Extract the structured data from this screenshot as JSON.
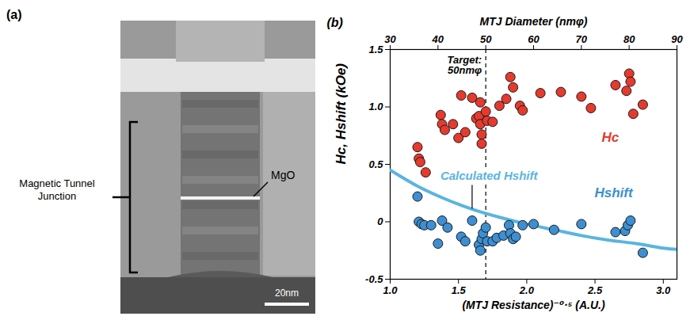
{
  "image_panel": {
    "panel": "(a)",
    "junction_label": "Magnetic Tunnel Junction",
    "barrier_label": "MgO",
    "scale_bar": "20nm"
  },
  "chart_data": {
    "type": "scatter",
    "panel": "(b)",
    "xlabel": "(MTJ Resistance)⁻⁰·⁵ (A.U.)",
    "ylabel": "Hc, Hshift (kOe)",
    "x2label": "MTJ Diameter (nmφ)",
    "xlim": [
      1.0,
      3.1
    ],
    "xticks": [
      {
        "value": 1,
        "label": "1.0"
      },
      1.5,
      {
        "value": 2,
        "label": "2.0"
      },
      2.5,
      {
        "value": 3,
        "label": "3.0"
      }
    ],
    "ylim": [
      -0.5,
      1.5
    ],
    "yticks": [
      -0.5,
      0,
      0.5,
      {
        "value": 1,
        "label": "1.0"
      },
      1.5
    ],
    "x2lim": [
      30,
      90
    ],
    "x2ticks": [
      30,
      40,
      50,
      60,
      70,
      80,
      90
    ],
    "annotations": [
      {
        "text": "Target: 50nmφ",
        "x2": 50,
        "line_style": "dashed"
      }
    ],
    "series": [
      {
        "name": "Hc",
        "type": "scatter",
        "marker": "circle",
        "color": "#e53a2e",
        "x": [
          1.2,
          1.21,
          1.22,
          1.26,
          1.37,
          1.38,
          1.4,
          1.46,
          1.5,
          1.52,
          1.55,
          1.6,
          1.63,
          1.65,
          1.66,
          1.66,
          1.67,
          1.67,
          1.7,
          1.71,
          1.75,
          1.8,
          1.85,
          1.88,
          1.9,
          1.95,
          1.97,
          2.1,
          2.25,
          2.4,
          2.47,
          2.65,
          2.73,
          2.75,
          2.76,
          2.78,
          2.85
        ],
        "values": [
          0.65,
          0.55,
          0.52,
          0.43,
          0.93,
          0.85,
          0.8,
          0.85,
          0.73,
          1.1,
          0.78,
          1.08,
          0.9,
          0.92,
          1.04,
          0.85,
          0.76,
          0.68,
          0.96,
          0.88,
          0.87,
          1.01,
          1.07,
          1.26,
          1.17,
          1.01,
          0.97,
          1.12,
          1.13,
          1.09,
          0.99,
          1.19,
          1.14,
          1.29,
          1.22,
          0.94,
          1.02
        ]
      },
      {
        "name": "Hshift",
        "type": "scatter",
        "marker": "circle",
        "color": "#3d8fd1",
        "x": [
          1.2,
          1.21,
          1.23,
          1.25,
          1.3,
          1.35,
          1.38,
          1.42,
          1.52,
          1.55,
          1.6,
          1.65,
          1.66,
          1.67,
          1.68,
          1.7,
          1.71,
          1.75,
          1.78,
          1.83,
          1.87,
          1.88,
          1.9,
          1.92,
          1.97,
          2.05,
          2.2,
          2.4,
          2.65,
          2.72,
          2.74,
          2.76,
          2.85
        ],
        "values": [
          0.22,
          0.0,
          -0.02,
          -0.03,
          -0.03,
          -0.19,
          0.01,
          -0.05,
          -0.13,
          -0.17,
          0.01,
          -0.2,
          -0.25,
          -0.15,
          -0.1,
          -0.05,
          -0.17,
          -0.17,
          -0.14,
          -0.12,
          -0.03,
          -0.1,
          -0.15,
          -0.13,
          -0.03,
          -0.02,
          -0.07,
          -0.02,
          -0.09,
          -0.08,
          -0.03,
          0.01,
          -0.27
        ]
      },
      {
        "name": "Calculated Hshift",
        "type": "line",
        "line_style": "solid",
        "color": "#5ab4e0",
        "x": [
          1.0,
          1.2,
          1.4,
          1.6,
          1.8,
          2.0,
          2.2,
          2.4,
          2.6,
          2.8,
          3.0,
          3.1
        ],
        "values": [
          0.45,
          0.31,
          0.2,
          0.11,
          0.04,
          -0.02,
          -0.07,
          -0.12,
          -0.16,
          -0.19,
          -0.23,
          -0.24
        ]
      }
    ]
  }
}
